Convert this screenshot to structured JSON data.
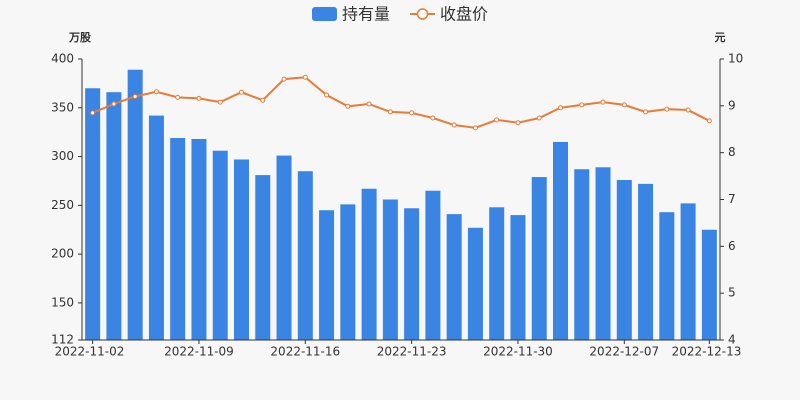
{
  "chart_data": {
    "type": "bar-line",
    "left_unit": "万股",
    "right_unit": "元",
    "categories": [
      "2022-11-02",
      null,
      null,
      null,
      null,
      "2022-11-09",
      null,
      null,
      null,
      null,
      "2022-11-16",
      null,
      null,
      null,
      null,
      "2022-11-23",
      null,
      null,
      null,
      null,
      "2022-11-30",
      null,
      null,
      null,
      null,
      "2022-12-07",
      null,
      null,
      null,
      "2022-12-13"
    ],
    "series": [
      {
        "name": "持有量",
        "color": "#3a84e3",
        "type": "bar",
        "axis": "y",
        "values": [
          370,
          366,
          389,
          342,
          319,
          318,
          306,
          297,
          281,
          301,
          285,
          245,
          251,
          267,
          256,
          247,
          265,
          241,
          227,
          248,
          240,
          279,
          315,
          287,
          289,
          276,
          272,
          243,
          252,
          225
        ]
      },
      {
        "name": "收盘价",
        "color": "#e87b36",
        "type": "line",
        "axis": "y2",
        "values": [
          8.85,
          9.04,
          9.2,
          9.3,
          9.18,
          9.16,
          9.08,
          9.29,
          9.12,
          9.57,
          9.61,
          9.23,
          8.99,
          9.04,
          8.87,
          8.85,
          8.74,
          8.59,
          8.53,
          8.7,
          8.64,
          8.74,
          8.96,
          9.02,
          9.08,
          9.02,
          8.87,
          8.93,
          8.91,
          8.68
        ]
      }
    ],
    "ylim": [
      112,
      400
    ],
    "yticks": [
      112,
      150,
      200,
      250,
      300,
      350,
      400
    ],
    "y2lim": [
      4,
      10
    ],
    "y2ticks": [
      4,
      5,
      6,
      7,
      8,
      9,
      10
    ]
  }
}
